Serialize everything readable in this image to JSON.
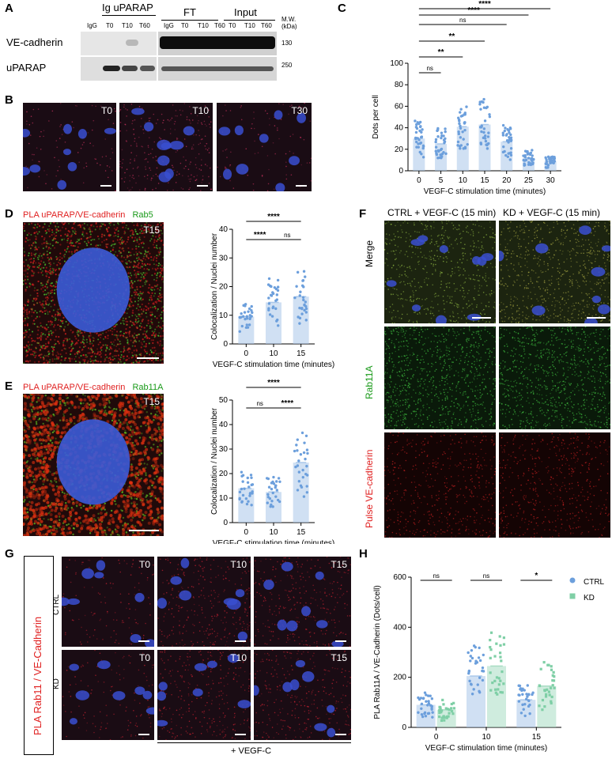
{
  "panels": {
    "A": "A",
    "B": "B",
    "C": "C",
    "D": "D",
    "E": "E",
    "F": "F",
    "G": "G",
    "H": "H"
  },
  "blot": {
    "group_ip": "Ig uPARAP",
    "group_ft": "FT",
    "group_input": "Input",
    "mw_header": "M.W.\n(kDa)",
    "lanes": [
      "IgG",
      "T0",
      "T10",
      "T60",
      "IgG",
      "T0",
      "T10",
      "T60",
      "T0",
      "T10",
      "T60"
    ],
    "row1_label": "VE-cadherin",
    "row2_label": "uPARAP",
    "mw1": "130",
    "mw2": "250"
  },
  "panel_b": {
    "labels": [
      "T0",
      "T10",
      "T30"
    ]
  },
  "panel_d": {
    "title_red": "PLA uPARAP/VE-cadherin",
    "title_green": "Rab5",
    "time": "T15"
  },
  "panel_e": {
    "title_red": "PLA uPARAP/VE-cadherin",
    "title_green": "Rab11A",
    "time": "T15"
  },
  "panel_f": {
    "col1": "CTRL + VEGF-C (15 min)",
    "col2": "KD + VEGF-C (15 min)",
    "row1": "Merge",
    "row2": "Rab11A",
    "row3": "Pulse VE-cadherin"
  },
  "panel_g": {
    "side_label": "PLA Rab11 / VE-Cadherin",
    "row_ctrl": "CTRL",
    "row_kd": "KD",
    "times": [
      "T0",
      "T10",
      "T15"
    ],
    "treatment": "+ VEGF-C"
  },
  "chart_data": [
    {
      "panel": "C",
      "type": "bar",
      "ylabel": "Dots per cell",
      "xlabel": "VEGF-C stimulation time (minutes)",
      "categories": [
        "0",
        "5",
        "10",
        "15",
        "20",
        "25",
        "30"
      ],
      "values": [
        30,
        25,
        41,
        43,
        27,
        12,
        9
      ],
      "ylim": [
        0,
        100
      ],
      "yticks": [
        0,
        20,
        40,
        60,
        80,
        100
      ],
      "color": "#a9c7ea",
      "significance": [
        "ns",
        "**",
        "**",
        "ns",
        "****",
        "****"
      ]
    },
    {
      "panel": "D",
      "type": "bar",
      "ylabel": "Colocalization / Nuclei number",
      "xlabel": "VEGF-C stimulation time (minutes)",
      "categories": [
        "0",
        "10",
        "15"
      ],
      "values": [
        9.5,
        14.5,
        16.5
      ],
      "ylim": [
        0,
        40
      ],
      "yticks": [
        0,
        10,
        20,
        30,
        40
      ],
      "color": "#a9c7ea",
      "significance": [
        "****",
        "ns",
        "****"
      ]
    },
    {
      "panel": "E",
      "type": "bar",
      "ylabel": "Colocalization / Nuclei number",
      "xlabel": "VEGF-C stimulation time (minutes)",
      "categories": [
        "0",
        "10",
        "15"
      ],
      "values": [
        14,
        12.5,
        24.5
      ],
      "ylim": [
        0,
        50
      ],
      "yticks": [
        0,
        10,
        20,
        30,
        40,
        50
      ],
      "color": "#a9c7ea",
      "significance": [
        "ns",
        "****",
        "****"
      ]
    },
    {
      "panel": "H",
      "type": "bar",
      "ylabel": "PLA Rab11A / VE-Cadherin (Dots/cell)",
      "xlabel": "VEGF-C stimulation time (minutes)",
      "categories": [
        "0",
        "10",
        "15"
      ],
      "series": [
        {
          "name": "CTRL",
          "values": [
            90,
            205,
            110
          ],
          "color": "#a9c7ea"
        },
        {
          "name": "KD",
          "values": [
            70,
            245,
            165
          ],
          "color": "#a8dcc3"
        }
      ],
      "ylim": [
        0,
        600
      ],
      "yticks": [
        0,
        200,
        400,
        600
      ],
      "significance": [
        "ns",
        "ns",
        "*"
      ]
    }
  ]
}
